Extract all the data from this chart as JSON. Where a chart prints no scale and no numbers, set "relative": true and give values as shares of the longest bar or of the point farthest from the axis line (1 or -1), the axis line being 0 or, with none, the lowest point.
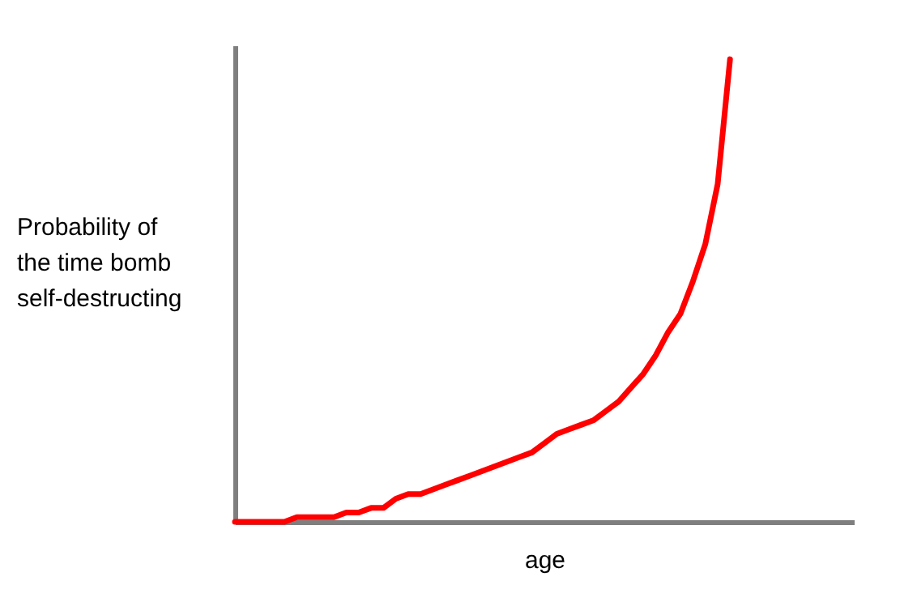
{
  "chart_data": {
    "type": "line",
    "relative": true,
    "xlabel": "age",
    "ylabel": "Probability of\nthe time bomb\nself-destructing",
    "grid": false,
    "legend": false,
    "marker": "none",
    "line_style": "solid",
    "tick_labels": false,
    "categories": [
      null,
      null,
      null,
      null,
      null,
      null,
      null,
      null,
      null,
      null,
      null,
      null,
      null,
      null,
      null,
      null,
      null,
      null,
      null,
      null,
      null,
      null,
      null,
      null,
      null,
      null,
      null,
      null,
      null,
      null,
      null,
      null,
      null,
      null,
      null,
      null,
      null,
      null,
      null,
      null,
      null,
      null,
      null,
      null,
      null,
      null,
      null,
      null,
      null,
      null,
      null
    ],
    "series": [
      {
        "color": "#ff0000",
        "values": [
          0.0,
          0.0,
          0.0,
          0.0,
          0.0,
          0.01,
          0.01,
          0.01,
          0.01,
          0.02,
          0.02,
          0.03,
          0.03,
          0.05,
          0.06,
          0.06,
          0.07,
          0.08,
          0.09,
          0.1,
          0.11,
          0.12,
          0.13,
          0.14,
          0.15,
          0.17,
          0.19,
          0.2,
          0.21,
          0.22,
          0.24,
          0.26,
          0.29,
          0.32,
          0.36,
          0.41,
          0.45,
          0.52,
          0.6,
          0.73,
          1.0,
          null,
          null,
          null,
          null,
          null,
          null,
          null,
          null,
          null,
          null
        ]
      }
    ]
  }
}
